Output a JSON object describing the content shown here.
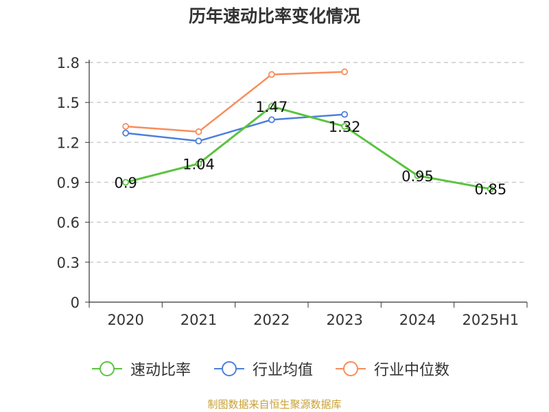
{
  "chart_data": {
    "type": "line",
    "title": "历年速动比率变化情况",
    "categories": [
      "2020",
      "2021",
      "2022",
      "2023",
      "2024",
      "2025H1"
    ],
    "ylim": [
      0,
      1.8
    ],
    "yticks": [
      "0",
      "0.3",
      "0.6",
      "0.9",
      "1.2",
      "1.5",
      "1.8"
    ],
    "grid": "horizontal dashed",
    "legend_position": "bottom",
    "series": [
      {
        "name": "速动比率",
        "color": "#5ac33f",
        "values": [
          0.9,
          1.04,
          1.47,
          1.32,
          0.95,
          0.85
        ],
        "labels": [
          "0.9",
          "1.04",
          "1.47",
          "1.32",
          "0.95",
          "0.85"
        ]
      },
      {
        "name": "行业均值",
        "color": "#4c7fdb",
        "values": [
          1.27,
          1.21,
          1.37,
          1.41,
          null,
          null
        ]
      },
      {
        "name": "行业中位数",
        "color": "#f88d5a",
        "values": [
          1.32,
          1.28,
          1.71,
          1.73,
          null,
          null
        ]
      }
    ]
  },
  "source": "制图数据来自恒生聚源数据库"
}
